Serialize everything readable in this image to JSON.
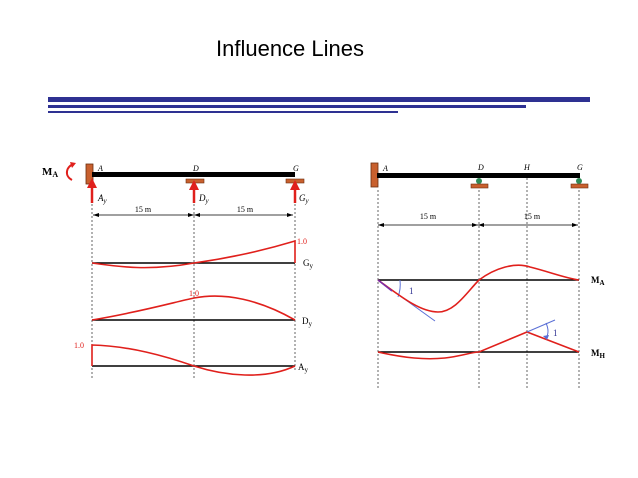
{
  "title": "Influence Lines",
  "colors": {
    "rule": "#2e3192",
    "curve": "#e0201c",
    "beam": "#000000",
    "support": "#c8602e",
    "roller": "#2e8b57",
    "tangent": "#5a6fd6"
  },
  "left_diagram": {
    "moment_label": "M",
    "moment_sub": "A",
    "points": [
      "A",
      "D",
      "G"
    ],
    "reactions": [
      {
        "main": "A",
        "sub": "y"
      },
      {
        "main": "D",
        "sub": "y"
      },
      {
        "main": "G",
        "sub": "y"
      }
    ],
    "spans": [
      "15 m",
      "15 m"
    ],
    "lines": [
      {
        "label": "G",
        "sub": "y",
        "value": "1.0"
      },
      {
        "label": "D",
        "sub": "y",
        "value": "1.0"
      },
      {
        "label": "A",
        "sub": "y",
        "value": "1.0"
      }
    ]
  },
  "right_diagram": {
    "points": [
      "A",
      "D",
      "H",
      "G"
    ],
    "spans": [
      "15 m",
      "15 m"
    ],
    "lines": [
      {
        "label": "M",
        "sub": "A",
        "slope": "1"
      },
      {
        "label": "M",
        "sub": "H",
        "slope": "1"
      }
    ]
  }
}
